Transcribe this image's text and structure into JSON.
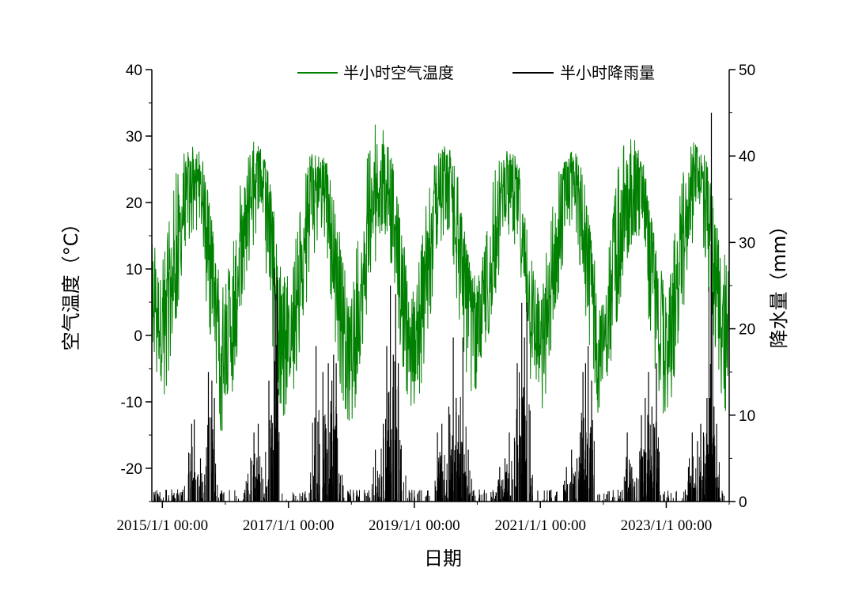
{
  "chart_data": {
    "type": "line",
    "xlabel": "日期",
    "ylabel_left": "空气温度（°C）",
    "ylabel_right": "降水量（mm）",
    "x_ticks": [
      "2015/1/1 00:00",
      "2017/1/1 00:00",
      "2019/1/1 00:00",
      "2021/1/1 00:00",
      "2023/1/1 00:00"
    ],
    "x_range": [
      "2014/11/01",
      "2024/01/01"
    ],
    "ylim_left": [
      -25,
      40
    ],
    "ylim_right": [
      0,
      50
    ],
    "yticks_left": [
      -20,
      -10,
      0,
      10,
      20,
      30,
      40
    ],
    "yticks_right": [
      0,
      10,
      20,
      30,
      40,
      50
    ],
    "legend_position": "top",
    "grid": false,
    "series": [
      {
        "name": "半小时空气温度",
        "axis": "left",
        "color": "#008000",
        "x": [
          "2014/11/01",
          "2015/01/01",
          "2015/02/01",
          "2015/03/01",
          "2015/04/01",
          "2015/05/01",
          "2015/06/01",
          "2015/07/01",
          "2015/08/01",
          "2015/09/01",
          "2015/10/01",
          "2015/11/01",
          "2015/12/01",
          "2016/01/01",
          "2016/02/01",
          "2016/03/01",
          "2016/04/01",
          "2016/05/01",
          "2016/06/01",
          "2016/07/01",
          "2016/08/01",
          "2016/09/01",
          "2016/10/01",
          "2016/11/01",
          "2016/12/01",
          "2017/01/01",
          "2017/02/01",
          "2017/03/01",
          "2017/04/01",
          "2017/05/01",
          "2017/06/01",
          "2017/07/01",
          "2017/08/01",
          "2017/09/01",
          "2017/10/01",
          "2017/11/01",
          "2017/12/01",
          "2018/01/01",
          "2018/02/01",
          "2018/03/01",
          "2018/04/01",
          "2018/05/01",
          "2018/06/01",
          "2018/07/01",
          "2018/08/01",
          "2018/09/01",
          "2018/10/01",
          "2018/11/01",
          "2018/12/01",
          "2019/01/01",
          "2019/02/01",
          "2019/03/01",
          "2019/04/01",
          "2019/05/01",
          "2019/06/01",
          "2019/07/01",
          "2019/08/01",
          "2019/09/01",
          "2019/10/01",
          "2019/11/01",
          "2019/12/01",
          "2020/01/01",
          "2020/02/01",
          "2020/03/01",
          "2020/04/01",
          "2020/05/01",
          "2020/06/01",
          "2020/07/01",
          "2020/08/01",
          "2020/09/01",
          "2020/10/01",
          "2020/11/01",
          "2020/12/01",
          "2021/01/01",
          "2021/02/01",
          "2021/03/01",
          "2021/04/01",
          "2021/05/01",
          "2021/06/01",
          "2021/07/01",
          "2021/08/01",
          "2021/09/01",
          "2021/10/01",
          "2021/11/01",
          "2021/12/01",
          "2022/01/01",
          "2022/02/01",
          "2022/03/01",
          "2022/04/01",
          "2022/05/01",
          "2022/06/01",
          "2022/07/01",
          "2022/08/01",
          "2022/09/01",
          "2022/10/01",
          "2022/11/01",
          "2022/12/01",
          "2023/01/01",
          "2023/02/01",
          "2023/03/01",
          "2023/04/01",
          "2023/05/01",
          "2023/06/01",
          "2023/07/01",
          "2023/08/01",
          "2023/09/01",
          "2023/10/01",
          "2023/11/01",
          "2023/12/01",
          "2024/01/01"
        ],
        "mean": [
          8,
          0,
          3,
          7,
          13,
          19,
          22,
          24,
          23,
          18,
          12,
          6,
          1,
          -1,
          1,
          6,
          12,
          18,
          22,
          24,
          23,
          18,
          12,
          6,
          0,
          -1,
          1,
          6,
          12,
          18,
          22,
          24,
          22,
          18,
          11,
          5,
          -1,
          -3,
          1,
          6,
          12,
          18,
          23,
          25,
          24,
          19,
          12,
          6,
          0,
          -1,
          1,
          6,
          12,
          18,
          22,
          24,
          23,
          18,
          12,
          6,
          1,
          0,
          2,
          7,
          12,
          18,
          22,
          23,
          23,
          18,
          11,
          5,
          0,
          -2,
          1,
          6,
          12,
          18,
          22,
          24,
          23,
          18,
          11,
          6,
          0,
          -1,
          2,
          7,
          12,
          18,
          22,
          24,
          23,
          18,
          12,
          6,
          0,
          -1,
          1,
          6,
          12,
          18,
          23,
          25,
          23,
          18,
          12,
          6,
          1,
          0
        ],
        "max": [
          15,
          12,
          16,
          22,
          26,
          28,
          29,
          29,
          28,
          26,
          20,
          14,
          10,
          8,
          12,
          18,
          24,
          27,
          29,
          30,
          28,
          26,
          20,
          14,
          9,
          9,
          12,
          18,
          24,
          27,
          28,
          28,
          27,
          24,
          20,
          14,
          9,
          6,
          14,
          20,
          27,
          30,
          33,
          31,
          30,
          27,
          21,
          14,
          8,
          7,
          12,
          18,
          24,
          27,
          28,
          29,
          28,
          26,
          20,
          14,
          10,
          8,
          12,
          18,
          24,
          26,
          28,
          28,
          27,
          26,
          20,
          14,
          10,
          6,
          12,
          18,
          24,
          26,
          27,
          27,
          27,
          25,
          20,
          14,
          10,
          8,
          14,
          20,
          26,
          29,
          31,
          30,
          28,
          25,
          20,
          14,
          10,
          8,
          12,
          18,
          24,
          27,
          29,
          29,
          28,
          27,
          20,
          16,
          14,
          10
        ],
        "min": [
          -2,
          -11,
          -8,
          -2,
          4,
          10,
          14,
          16,
          15,
          8,
          0,
          -6,
          -14,
          -17,
          -12,
          -5,
          3,
          8,
          12,
          16,
          14,
          6,
          -2,
          -8,
          -14,
          -8,
          -10,
          -4,
          2,
          8,
          12,
          16,
          14,
          6,
          -2,
          -8,
          -12,
          -14,
          -10,
          -4,
          2,
          8,
          12,
          16,
          14,
          8,
          0,
          -6,
          -12,
          -12,
          -10,
          -4,
          2,
          8,
          12,
          16,
          14,
          6,
          -2,
          -6,
          -10,
          -8,
          -6,
          -2,
          4,
          8,
          12,
          15,
          14,
          6,
          0,
          -6,
          -12,
          -14,
          -10,
          -4,
          2,
          8,
          12,
          16,
          14,
          6,
          0,
          -6,
          -12,
          -8,
          -6,
          -2,
          4,
          8,
          12,
          15,
          14,
          6,
          0,
          -6,
          -12,
          -12,
          -10,
          -4,
          2,
          8,
          12,
          16,
          14,
          6,
          0,
          -6,
          -12,
          -12
        ]
      },
      {
        "name": "半小时降雨量",
        "axis": "right",
        "color": "#000000",
        "peaks": [
          {
            "date": "2015/06/20",
            "value": 9
          },
          {
            "date": "2015/07/05",
            "value": 9.5
          },
          {
            "date": "2015/08/10",
            "value": 5
          },
          {
            "date": "2015/09/25",
            "value": 15
          },
          {
            "date": "2015/10/15",
            "value": 14
          },
          {
            "date": "2015/10/30",
            "value": 12
          },
          {
            "date": "2016/06/15",
            "value": 8
          },
          {
            "date": "2016/07/10",
            "value": 9
          },
          {
            "date": "2016/09/10",
            "value": 14
          },
          {
            "date": "2016/09/25",
            "value": 10
          },
          {
            "date": "2016/10/10",
            "value": 27
          },
          {
            "date": "2016/10/20",
            "value": 24
          },
          {
            "date": "2016/10/28",
            "value": 26
          },
          {
            "date": "2017/06/10",
            "value": 18
          },
          {
            "date": "2017/07/20",
            "value": 15
          },
          {
            "date": "2017/08/20",
            "value": 16
          },
          {
            "date": "2017/09/10",
            "value": 14
          },
          {
            "date": "2017/09/20",
            "value": 17
          },
          {
            "date": "2017/10/05",
            "value": 16
          },
          {
            "date": "2018/05/20",
            "value": 6
          },
          {
            "date": "2018/07/05",
            "value": 9
          },
          {
            "date": "2018/07/25",
            "value": 18
          },
          {
            "date": "2018/08/15",
            "value": 25
          },
          {
            "date": "2018/09/01",
            "value": 17
          },
          {
            "date": "2018/09/15",
            "value": 24
          },
          {
            "date": "2018/09/30",
            "value": 16
          },
          {
            "date": "2019/05/15",
            "value": 8
          },
          {
            "date": "2019/06/10",
            "value": 9
          },
          {
            "date": "2019/07/20",
            "value": 11
          },
          {
            "date": "2019/08/15",
            "value": 19
          },
          {
            "date": "2019/09/01",
            "value": 12
          },
          {
            "date": "2019/09/15",
            "value": 10
          },
          {
            "date": "2019/10/10",
            "value": 19
          },
          {
            "date": "2019/11/10",
            "value": 6
          },
          {
            "date": "2020/05/10",
            "value": 4
          },
          {
            "date": "2020/06/10",
            "value": 5
          },
          {
            "date": "2020/07/05",
            "value": 8
          },
          {
            "date": "2020/08/20",
            "value": 16
          },
          {
            "date": "2020/09/01",
            "value": 12
          },
          {
            "date": "2020/09/15",
            "value": 23
          },
          {
            "date": "2020/10/01",
            "value": 19
          },
          {
            "date": "2020/10/15",
            "value": 23
          },
          {
            "date": "2021/06/01",
            "value": 4
          },
          {
            "date": "2021/07/01",
            "value": 6
          },
          {
            "date": "2021/08/01",
            "value": 5
          },
          {
            "date": "2021/08/20",
            "value": 8
          },
          {
            "date": "2021/09/05",
            "value": 15
          },
          {
            "date": "2021/09/20",
            "value": 16
          },
          {
            "date": "2021/10/05",
            "value": 18
          },
          {
            "date": "2021/10/25",
            "value": 14
          },
          {
            "date": "2022/05/20",
            "value": 8
          },
          {
            "date": "2022/06/15",
            "value": 4
          },
          {
            "date": "2022/08/10",
            "value": 10
          },
          {
            "date": "2022/09/01",
            "value": 12
          },
          {
            "date": "2022/09/20",
            "value": 15
          },
          {
            "date": "2022/10/10",
            "value": 11
          },
          {
            "date": "2022/10/20",
            "value": 9
          },
          {
            "date": "2022/11/05",
            "value": 16
          },
          {
            "date": "2023/05/10",
            "value": 4
          },
          {
            "date": "2023/06/01",
            "value": 8
          },
          {
            "date": "2023/07/01",
            "value": 7
          },
          {
            "date": "2023/07/20",
            "value": 9
          },
          {
            "date": "2023/08/05",
            "value": 8
          },
          {
            "date": "2023/08/25",
            "value": 12
          },
          {
            "date": "2023/09/10",
            "value": 12
          },
          {
            "date": "2023/09/20",
            "value": 45
          },
          {
            "date": "2023/10/05",
            "value": 11
          },
          {
            "date": "2023/10/20",
            "value": 9
          }
        ]
      }
    ]
  }
}
